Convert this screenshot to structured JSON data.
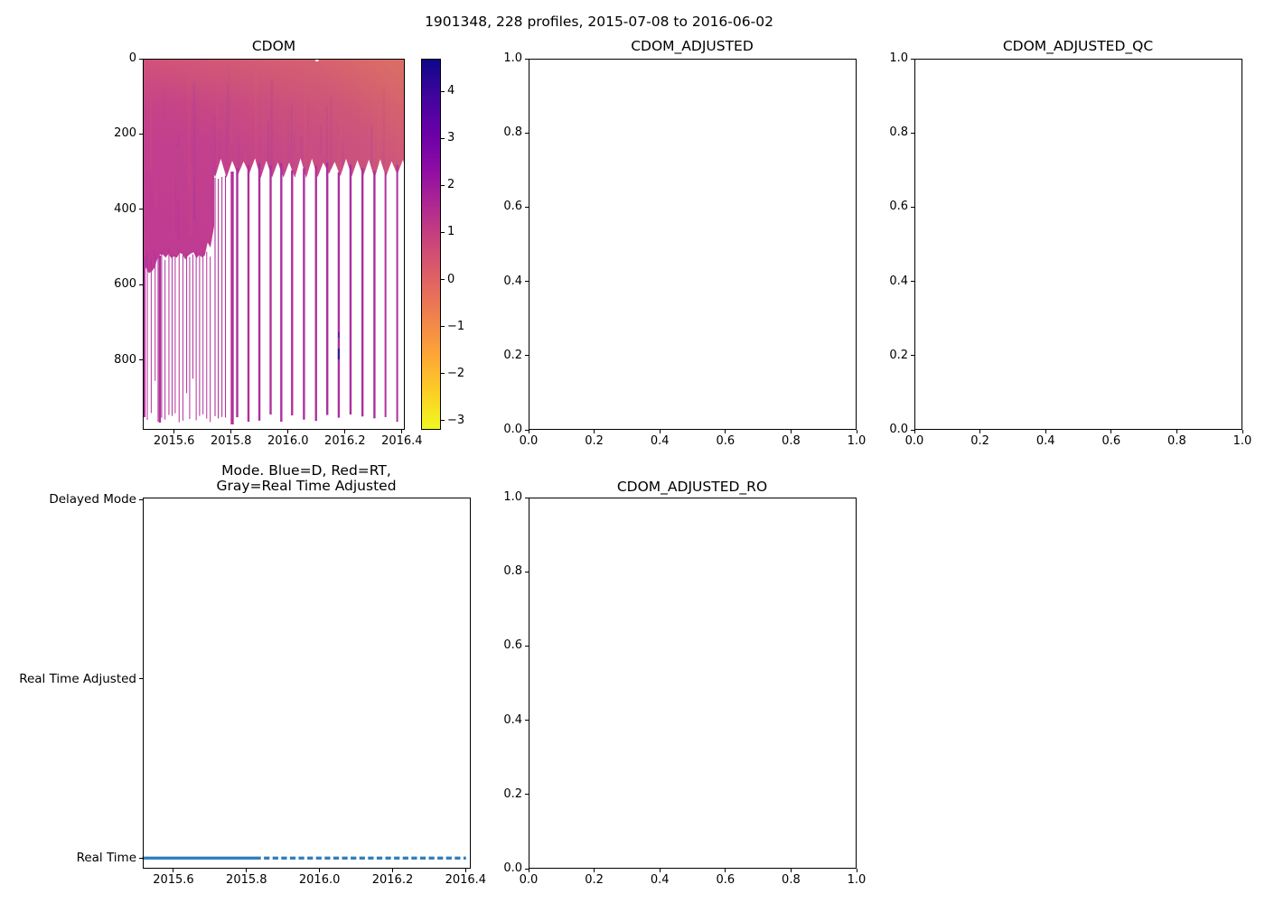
{
  "figure": {
    "title": "1901348, 228 profiles, 2015-07-08 to 2016-06-02",
    "background": "#ffffff",
    "text_color": "#000000"
  },
  "chart_data": [
    {
      "id": "cdom",
      "type": "heatmap",
      "title": "CDOM",
      "xlim": [
        2015.49,
        2016.41
      ],
      "x_tick_values": [
        2015.6,
        2015.8,
        2016.0,
        2016.2,
        2016.4
      ],
      "x_tick_labels": [
        "2015.6",
        "2015.8",
        "2016.0",
        "2016.2",
        "2016.4"
      ],
      "ylim": [
        0,
        985
      ],
      "y_axis_inverted": true,
      "y_tick_values": [
        0,
        200,
        400,
        600,
        800
      ],
      "y_tick_labels": [
        "0",
        "200",
        "400",
        "600",
        "800"
      ],
      "grid": false,
      "colormap": "plasma_r",
      "colorbar": {
        "vmin": -3.2,
        "vmax": 4.7,
        "tick_values": [
          4,
          3,
          2,
          1,
          0,
          -1,
          -2,
          -3
        ],
        "tick_labels": [
          "4",
          "3",
          "2",
          "1",
          "0",
          "−1",
          "−2",
          "−3"
        ],
        "gradient_top_to_bottom": [
          "#0d0887",
          "#41049d",
          "#6a00a8",
          "#8f0da4",
          "#b12a90",
          "#cc4778",
          "#e16462",
          "#f1834c",
          "#fca636",
          "#fcce25",
          "#f0f921"
        ]
      },
      "mesh": {
        "description": "228 profile columns; continuous fill to ~520 dbar before 2015.74, to ~300 dbar after; thin per-profile lines reach ~960 dbar; surface band salmon, body magenta",
        "left_block": {
          "t0": 2015.49,
          "t1": 2015.74,
          "bottom_depth": 520
        },
        "right_block": {
          "t0": 2015.74,
          "t1": 2016.41,
          "bottom_depth": 300
        },
        "deep_line_bottom_depth": 960,
        "anomaly": {
          "time": 2016.18,
          "depth": 780
        },
        "colors": {
          "surface_pink": "#d0507b",
          "body_magenta": "#bf3a93",
          "salmon_overlay": "#e07a5c",
          "profile_line": "#b23099",
          "purple_streak": "#8c32aa",
          "anomaly_dark": "#231d92",
          "anomaly_mid": "#41249e"
        }
      }
    },
    {
      "id": "cdom_adjusted",
      "type": "empty",
      "title": "CDOM_ADJUSTED",
      "xlim": [
        0,
        1
      ],
      "ylim": [
        0,
        1
      ],
      "x_tick_values": [
        0,
        0.2,
        0.4,
        0.6,
        0.8,
        1
      ],
      "x_tick_labels": [
        "0.0",
        "0.2",
        "0.4",
        "0.6",
        "0.8",
        "1.0"
      ],
      "y_tick_values": [
        0,
        0.2,
        0.4,
        0.6,
        0.8,
        1
      ],
      "y_tick_labels": [
        "0.0",
        "0.2",
        "0.4",
        "0.6",
        "0.8",
        "1.0"
      ]
    },
    {
      "id": "cdom_adjusted_qc",
      "type": "empty",
      "title": "CDOM_ADJUSTED_QC",
      "xlim": [
        0,
        1
      ],
      "ylim": [
        0,
        1
      ],
      "x_tick_values": [
        0,
        0.2,
        0.4,
        0.6,
        0.8,
        1
      ],
      "x_tick_labels": [
        "0.0",
        "0.2",
        "0.4",
        "0.6",
        "0.8",
        "1.0"
      ],
      "y_tick_values": [
        0,
        0.2,
        0.4,
        0.6,
        0.8,
        1
      ],
      "y_tick_labels": [
        "0.0",
        "0.2",
        "0.4",
        "0.6",
        "0.8",
        "1.0"
      ]
    },
    {
      "id": "mode",
      "type": "scatter",
      "title_lines": [
        "Mode. Blue=D, Red=RT,",
        "Gray=Real Time Adjusted"
      ],
      "xlim": [
        2015.516,
        2016.414
      ],
      "x_tick_values": [
        2015.6,
        2015.8,
        2016.0,
        2016.2,
        2016.4
      ],
      "x_tick_labels": [
        "2015.6",
        "2015.8",
        "2016.0",
        "2016.2",
        "2016.4"
      ],
      "y_categories": [
        "Delayed Mode",
        "Real Time Adjusted",
        "Real Time"
      ],
      "series": [
        {
          "name": "mode-markers",
          "category": "Real Time",
          "color": "#2b7bba",
          "x_start": 2015.52,
          "x_solid_until": 2015.824,
          "x_end": 2016.401,
          "style": "dense small markers, continuous until 2015.82 then dash groups"
        }
      ]
    },
    {
      "id": "cdom_adjusted_ro",
      "type": "empty",
      "title": "CDOM_ADJUSTED_RO",
      "xlim": [
        0,
        1
      ],
      "ylim": [
        0,
        1
      ],
      "x_tick_values": [
        0,
        0.2,
        0.4,
        0.6,
        0.8,
        1
      ],
      "x_tick_labels": [
        "0.0",
        "0.2",
        "0.4",
        "0.6",
        "0.8",
        "1.0"
      ],
      "y_tick_values": [
        0,
        0.2,
        0.4,
        0.6,
        0.8,
        1
      ],
      "y_tick_labels": [
        "0.0",
        "0.2",
        "0.4",
        "0.6",
        "0.8",
        "1.0"
      ]
    }
  ]
}
